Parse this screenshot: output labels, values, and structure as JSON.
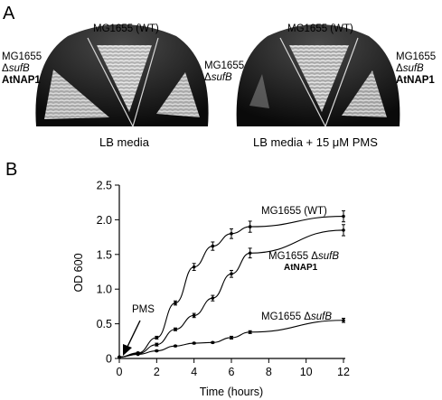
{
  "panel_a": {
    "letter": "A",
    "plates": [
      {
        "caption": "LB media",
        "labels": {
          "top": "MG1655 (WT)",
          "left": {
            "line1": "MG1655",
            "line2_prefix": "Δ",
            "line2_gene": "sufB",
            "line3": "AtNAP1"
          },
          "right": {
            "line1": "MG1655",
            "line2_prefix": "Δ",
            "line2_gene": "sufB"
          }
        }
      },
      {
        "caption": "LB media + 15 μM PMS",
        "labels": {
          "top": "MG1655 (WT)",
          "right": {
            "line1": "MG1655",
            "line2_prefix": "Δ",
            "line2_gene": "sufB",
            "line3": "AtNAP1"
          }
        }
      }
    ]
  },
  "panel_b": {
    "letter": "B",
    "arrow_label": "PMS",
    "series_labels": {
      "wt": "MG1655 (WT)",
      "atnap1_line1": "MG1655 Δ",
      "atnap1_gene": "sufB",
      "atnap1_line2": "AtNAP1",
      "sufb_prefix": "MG1655 Δ",
      "sufb_gene": "sufB"
    }
  },
  "chart_data": {
    "type": "line",
    "title": "",
    "xlabel": "Time (hours)",
    "ylabel": "OD 600",
    "xlim": [
      0,
      12
    ],
    "ylim": [
      0,
      2.5
    ],
    "xticks": [
      0,
      2,
      4,
      6,
      8,
      10,
      12
    ],
    "yticks": [
      0,
      0.5,
      1.0,
      1.5,
      2.0,
      2.5
    ],
    "ytick_labels": [
      "0",
      "0.5",
      "1.0",
      "1.5",
      "2.0",
      "2.5"
    ],
    "grid": false,
    "series": [
      {
        "name": "MG1655 (WT)",
        "x": [
          0,
          1,
          2,
          3,
          4,
          5,
          6,
          7,
          12
        ],
        "y": [
          0.02,
          0.08,
          0.3,
          0.8,
          1.32,
          1.62,
          1.8,
          1.9,
          2.05
        ],
        "err": [
          0,
          0.01,
          0.02,
          0.03,
          0.05,
          0.06,
          0.07,
          0.08,
          0.08
        ]
      },
      {
        "name": "MG1655 ΔsufB AtNAP1",
        "x": [
          0,
          1,
          2,
          3,
          4,
          5,
          6,
          7,
          12
        ],
        "y": [
          0.02,
          0.07,
          0.2,
          0.42,
          0.62,
          0.87,
          1.22,
          1.52,
          1.85
        ],
        "err": [
          0,
          0.01,
          0.02,
          0.02,
          0.03,
          0.04,
          0.05,
          0.07,
          0.08
        ]
      },
      {
        "name": "MG1655 ΔsufB",
        "x": [
          0,
          1,
          2,
          3,
          4,
          5,
          6,
          7,
          12
        ],
        "y": [
          0.02,
          0.06,
          0.11,
          0.18,
          0.22,
          0.23,
          0.3,
          0.38,
          0.55
        ],
        "err": [
          0,
          0.005,
          0.01,
          0.01,
          0.01,
          0.01,
          0.02,
          0.02,
          0.03
        ]
      }
    ]
  }
}
